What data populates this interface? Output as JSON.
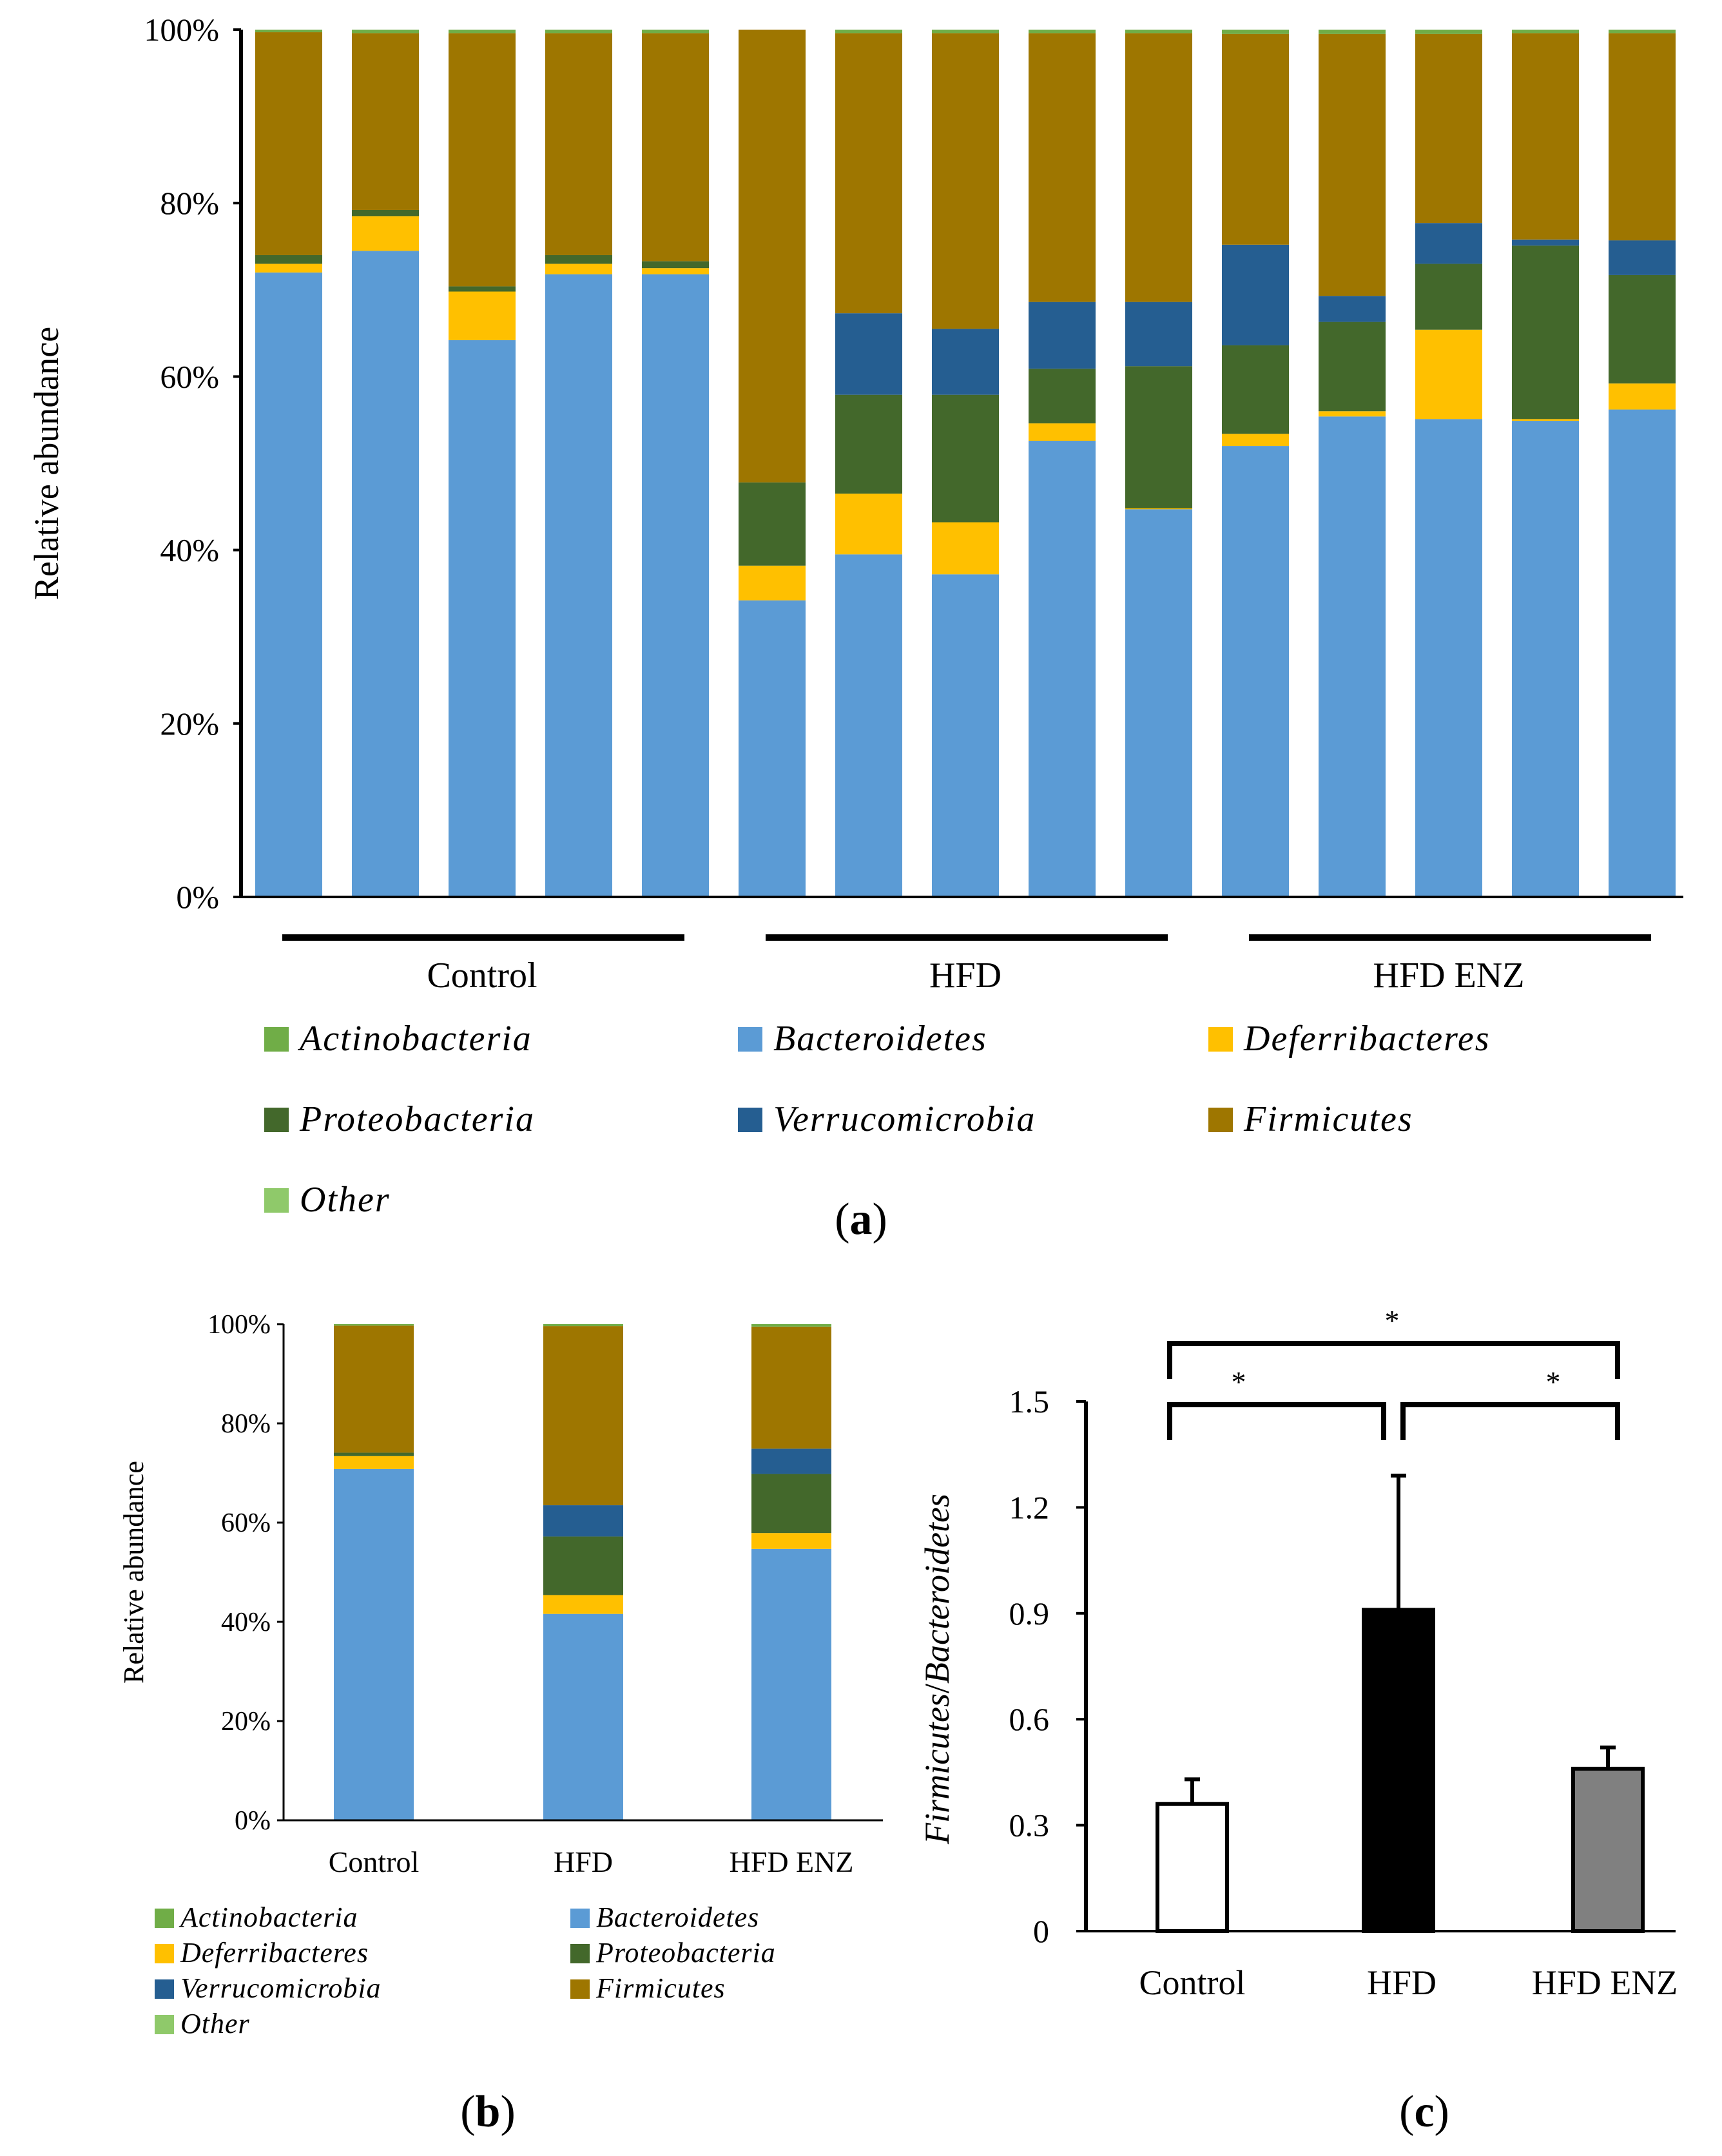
{
  "colors": {
    "Actinobacteria": "#70ad47",
    "Bacteroidetes": "#5b9bd5",
    "Deferribacteres": "#ffc000",
    "Proteobacteria": "#43682b",
    "Verrucomicrobia": "#255e91",
    "Firmicutes": "#9e7600",
    "Other": "#8fc96a"
  },
  "legend": [
    {
      "key": "Actinobacteria",
      "label": "Actinobacteria"
    },
    {
      "key": "Bacteroidetes",
      "label": "Bacteroidetes"
    },
    {
      "key": "Deferribacteres",
      "label": "Deferribacteres"
    },
    {
      "key": "Proteobacteria",
      "label": "Proteobacteria"
    },
    {
      "key": "Verrucomicrobia",
      "label": "Verrucomicrobia"
    },
    {
      "key": "Firmicutes",
      "label": "Firmicutes"
    },
    {
      "key": "Other",
      "label": "Other"
    }
  ],
  "panel_labels": {
    "a": "a",
    "b": "b",
    "c": "c"
  },
  "chart_data": [
    {
      "id": "a",
      "type": "bar",
      "stacked": true,
      "ylabel": "Relative abundance",
      "ylim": [
        0,
        100
      ],
      "yticks": [
        "0%",
        "20%",
        "40%",
        "60%",
        "80%",
        "100%"
      ],
      "groups": [
        {
          "label": "Control",
          "bars": 5
        },
        {
          "label": "HFD",
          "bars": 5
        },
        {
          "label": "HFD ENZ",
          "bars": 5
        }
      ],
      "series": [
        {
          "name": "Bacteroidetes",
          "values": [
            72,
            74.5,
            64.2,
            71.8,
            71.8,
            34.2,
            39.5,
            37.2,
            52.6,
            44.7,
            52,
            55.4,
            55.1,
            54.9,
            56.2
          ]
        },
        {
          "name": "Deferribacteres",
          "values": [
            1,
            4,
            5.6,
            1.2,
            0.7,
            4,
            7,
            6,
            2,
            0.1,
            1.4,
            0.6,
            10.3,
            0.2,
            3
          ]
        },
        {
          "name": "Proteobacteria",
          "values": [
            1,
            0.7,
            0.6,
            1,
            0.8,
            9.6,
            11.4,
            14.7,
            6.3,
            16.4,
            10.2,
            10.3,
            7.6,
            20,
            12.5
          ]
        },
        {
          "name": "Verrucomicrobia",
          "values": [
            0,
            0,
            0,
            0,
            0,
            0,
            9.4,
            7.6,
            7.7,
            7.4,
            11.6,
            3,
            4.7,
            0.7,
            4
          ]
        },
        {
          "name": "Firmicutes",
          "values": [
            25.7,
            20.4,
            29.2,
            25.6,
            26.3,
            52.2,
            32.3,
            34.1,
            31,
            31,
            24.3,
            30.2,
            21.8,
            23.8,
            23.9
          ]
        },
        {
          "name": "Actinobacteria",
          "values": [
            0.3,
            0.4,
            0.4,
            0.4,
            0.4,
            0,
            0.4,
            0.4,
            0.4,
            0.4,
            0.5,
            0.5,
            0.5,
            0.4,
            0.4
          ]
        }
      ]
    },
    {
      "id": "b",
      "type": "bar",
      "stacked": true,
      "ylabel": "Relative abundance",
      "ylim": [
        0,
        100
      ],
      "yticks": [
        "0%",
        "20%",
        "40%",
        "60%",
        "80%",
        "100%"
      ],
      "categories": [
        "Control",
        "HFD",
        "HFD ENZ"
      ],
      "series": [
        {
          "name": "Bacteroidetes",
          "values": [
            70.8,
            41.6,
            54.7
          ]
        },
        {
          "name": "Deferribacteres",
          "values": [
            2.6,
            3.8,
            3.2
          ]
        },
        {
          "name": "Proteobacteria",
          "values": [
            0.7,
            11.8,
            11.9
          ]
        },
        {
          "name": "Verrucomicrobia",
          "values": [
            0,
            6.3,
            5.1
          ]
        },
        {
          "name": "Firmicutes",
          "values": [
            25.6,
            36.1,
            24.6
          ]
        },
        {
          "name": "Actinobacteria",
          "values": [
            0.3,
            0.4,
            0.5
          ]
        }
      ]
    },
    {
      "id": "c",
      "type": "bar",
      "ylabel_parts": [
        "Firmicutes",
        "/",
        "Bacteroidetes"
      ],
      "ylim": [
        0,
        1.5
      ],
      "yticks": [
        "0",
        "0.3",
        "0.6",
        "0.9",
        "1.2",
        "1.5"
      ],
      "categories": [
        "Control",
        "HFD",
        "HFD ENZ"
      ],
      "values": [
        0.36,
        0.91,
        0.46
      ],
      "errors": [
        0.07,
        0.38,
        0.06
      ],
      "bar_colors": [
        "#ffffff",
        "#000000",
        "#808080"
      ],
      "significance": [
        {
          "from": 0,
          "to": 1,
          "label": "*"
        },
        {
          "from": 1,
          "to": 2,
          "label": "*"
        },
        {
          "from": 0,
          "to": 2,
          "label": "*"
        }
      ]
    }
  ]
}
